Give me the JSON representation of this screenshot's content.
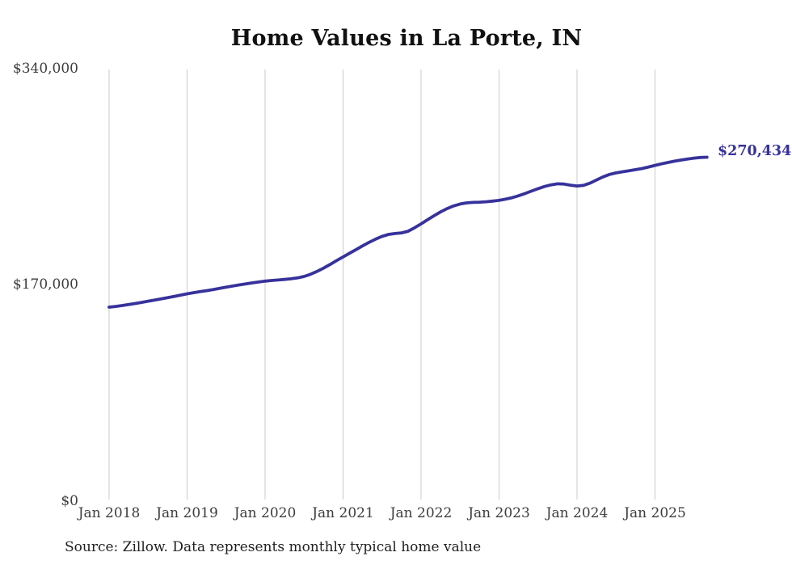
{
  "source_note": "Source: Zillow. Data represents monthly typical home value",
  "colors": {
    "line": "#37329b",
    "grid": "#cbcbcb",
    "axis_text": "#3d3d3d",
    "title_text": "#111111"
  },
  "chart_data": {
    "type": "line",
    "title": "Home Values in La Porte, IN",
    "xlabel": "",
    "ylabel": "",
    "ylim": [
      0,
      340000
    ],
    "grid": "vertical-only",
    "legend": "none",
    "frequency": "monthly",
    "x_start": "Jan 2018",
    "x_end": "Sep 2025",
    "x_tick_labels": [
      "Jan 2018",
      "Jan 2019",
      "Jan 2020",
      "Jan 2021",
      "Jan 2022",
      "Jan 2023",
      "Jan 2024",
      "Jan 2025"
    ],
    "y_tick_labels": [
      "$0",
      "$170,000",
      "$340,000"
    ],
    "final_value": 270434,
    "final_value_label": "$270,434",
    "series_name": "Typical home value",
    "values": [
      152500,
      153100,
      153800,
      154600,
      155400,
      156300,
      157200,
      158100,
      159000,
      160000,
      161000,
      162000,
      163000,
      163900,
      164700,
      165500,
      166400,
      167300,
      168200,
      169100,
      170000,
      170800,
      171600,
      172300,
      173000,
      173500,
      173900,
      174300,
      174800,
      175500,
      176700,
      178400,
      180600,
      183200,
      186100,
      189100,
      192000,
      194900,
      197800,
      200700,
      203500,
      206000,
      208200,
      209700,
      210400,
      210900,
      212200,
      214900,
      218000,
      221200,
      224400,
      227400,
      230000,
      232100,
      233600,
      234500,
      234900,
      235100,
      235400,
      235900,
      236500,
      237400,
      238600,
      240100,
      241900,
      243800,
      245700,
      247400,
      248700,
      249500,
      249300,
      248400,
      247800,
      248300,
      250000,
      252500,
      255000,
      256900,
      258100,
      259000,
      259800,
      260600,
      261500,
      262700,
      264000,
      265200,
      266300,
      267300,
      268200,
      269000,
      269700,
      270200,
      270434
    ]
  }
}
